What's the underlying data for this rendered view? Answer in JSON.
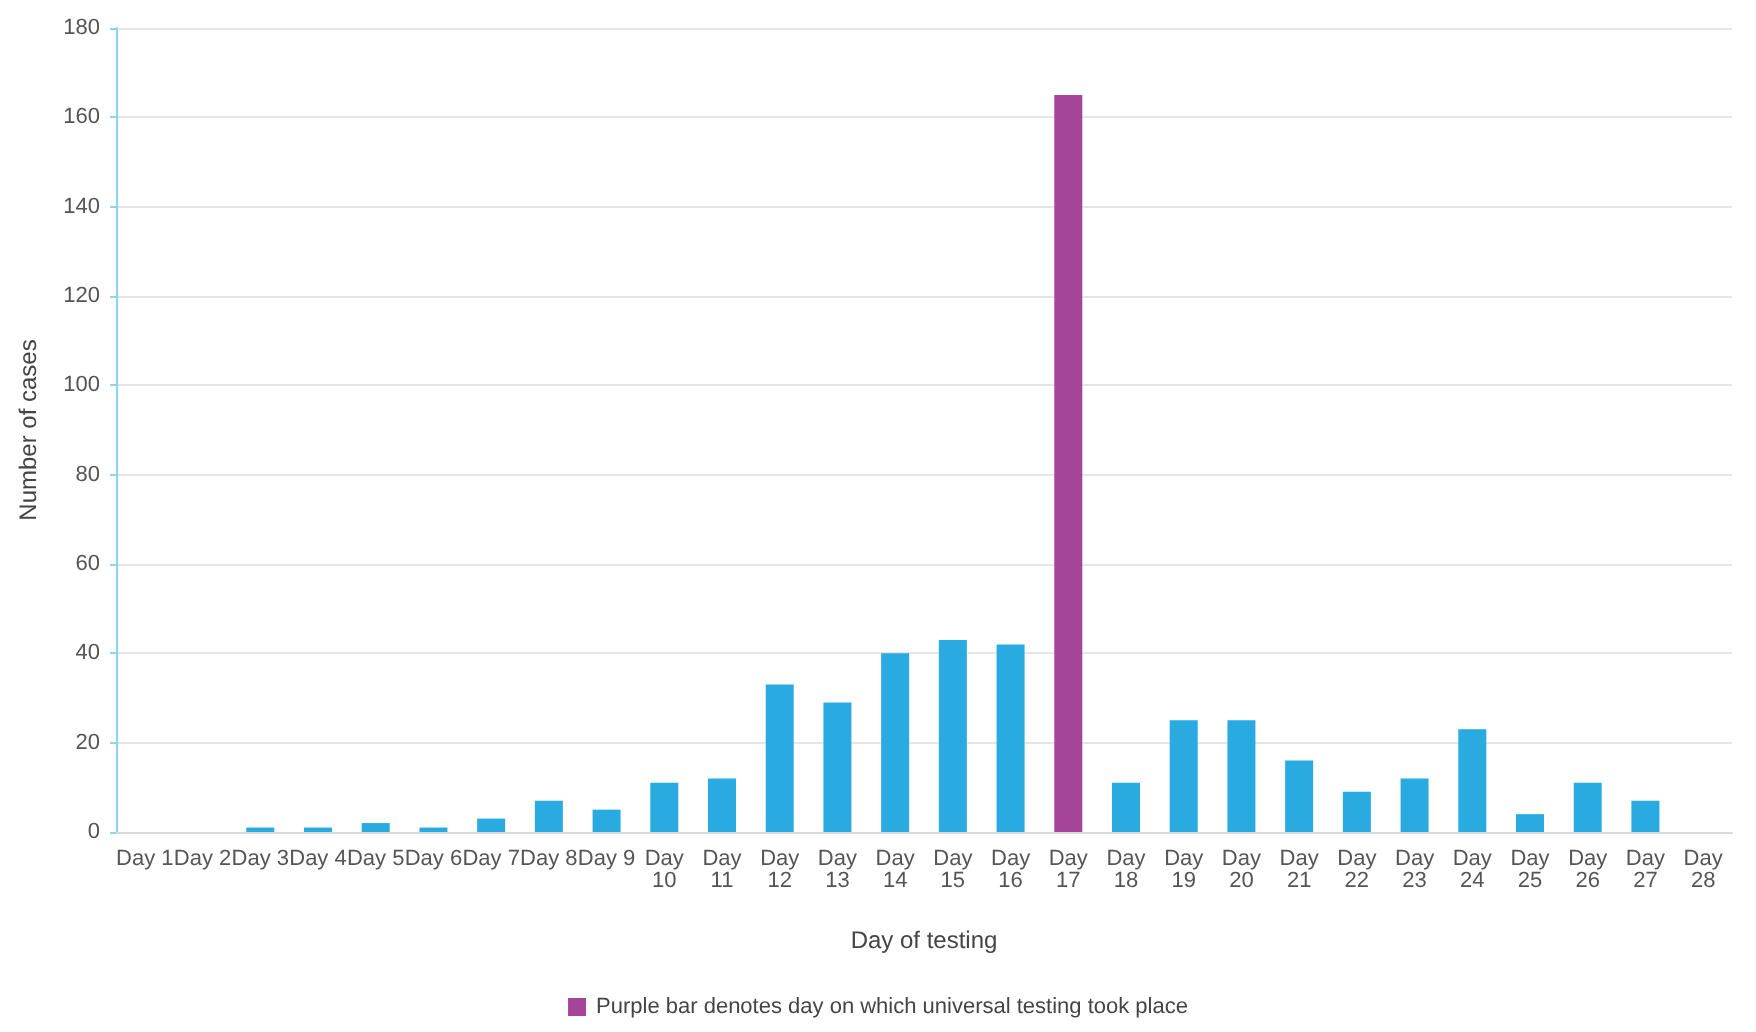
{
  "chart_data": {
    "type": "bar",
    "xlabel": "Day of testing",
    "ylabel": "Number of cases",
    "categories": [
      "Day 1",
      "Day 2",
      "Day 3",
      "Day 4",
      "Day 5",
      "Day 6",
      "Day 7",
      "Day 8",
      "Day 9",
      "Day 10",
      "Day 11",
      "Day 12",
      "Day 13",
      "Day 14",
      "Day 15",
      "Day 16",
      "Day 17",
      "Day 18",
      "Day 19",
      "Day 20",
      "Day 21",
      "Day 22",
      "Day 23",
      "Day 24",
      "Day 25",
      "Day 26",
      "Day 27",
      "Day 28"
    ],
    "series": [
      {
        "color": "#29abe2",
        "values": [
          0,
          0,
          1,
          1,
          2,
          1,
          3,
          7,
          5,
          11,
          12,
          33,
          29,
          40,
          43,
          42,
          null,
          11,
          25,
          25,
          16,
          9,
          12,
          23,
          4,
          11,
          7,
          0
        ]
      },
      {
        "name": "Purple bar denotes day on which universal testing took place",
        "color": "#a6449a",
        "values": [
          null,
          null,
          null,
          null,
          null,
          null,
          null,
          null,
          null,
          null,
          null,
          null,
          null,
          null,
          null,
          null,
          165,
          null,
          null,
          null,
          null,
          null,
          null,
          null,
          null,
          null,
          null,
          null
        ]
      }
    ],
    "stacked": true,
    "ylim": [
      0,
      180
    ],
    "yticks": [
      0,
      20,
      40,
      60,
      80,
      100,
      120,
      140,
      160,
      180
    ],
    "grid": "y",
    "legend": "bottom"
  }
}
